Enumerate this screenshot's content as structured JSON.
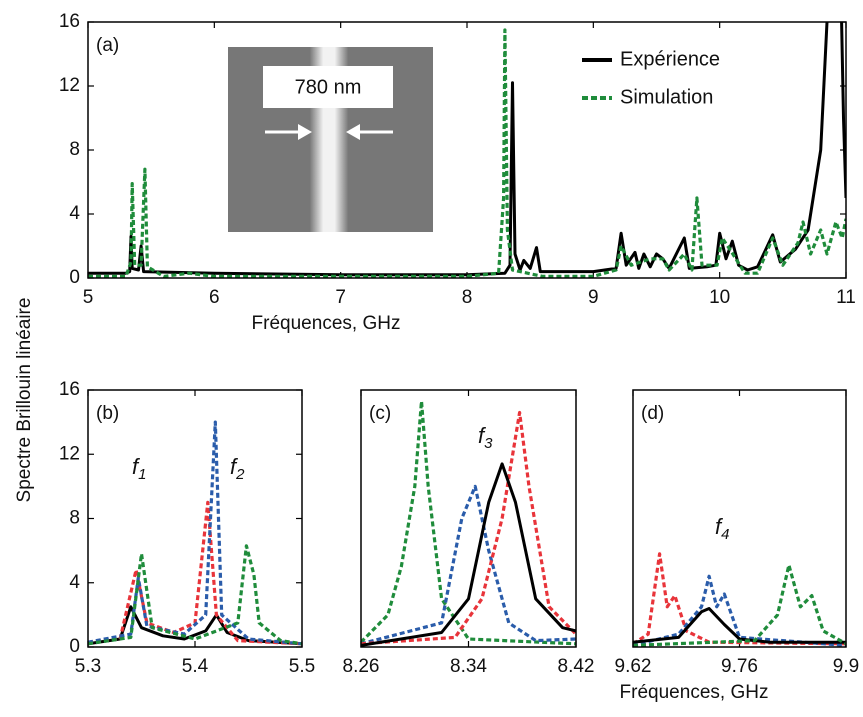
{
  "chart_data": [
    {
      "type": "line",
      "panel_label": "(a)",
      "xlabel": "Fréquences, GHz",
      "ylabel": "Spectre Brillouin linéaire",
      "xlim": [
        5,
        11
      ],
      "xticks": [
        5,
        6,
        7,
        8,
        9,
        10,
        11
      ],
      "ylim": [
        0,
        16
      ],
      "yticks": [
        0,
        4,
        8,
        12,
        16
      ],
      "inset_label": "780 nm",
      "legend": "top-right",
      "series": [
        {
          "name": "Expérience",
          "color": "#000000",
          "linestyle": "solid",
          "x": [
            5.0,
            5.3,
            5.33,
            5.34,
            5.35,
            5.4,
            5.42,
            5.44,
            6.0,
            7.0,
            8.0,
            8.3,
            8.34,
            8.36,
            8.38,
            8.42,
            8.45,
            8.5,
            8.55,
            8.58,
            9.0,
            9.18,
            9.22,
            9.26,
            9.33,
            9.36,
            9.4,
            9.45,
            9.5,
            9.55,
            9.6,
            9.72,
            9.76,
            9.9,
            9.97,
            10.0,
            10.05,
            10.1,
            10.15,
            10.22,
            10.3,
            10.42,
            10.48,
            10.6,
            10.7,
            10.8,
            10.85,
            10.88,
            10.95,
            10.98,
            11.0
          ],
          "values": [
            0.3,
            0.3,
            0.4,
            2.6,
            0.6,
            0.5,
            2.0,
            0.4,
            0.3,
            0.2,
            0.2,
            0.3,
            0.8,
            12.2,
            1.5,
            0.5,
            1.1,
            0.6,
            1.9,
            0.4,
            0.4,
            0.6,
            2.8,
            0.8,
            1.6,
            0.6,
            1.5,
            0.7,
            1.5,
            1.2,
            0.6,
            2.5,
            0.6,
            0.7,
            0.8,
            2.8,
            1.2,
            2.3,
            0.8,
            0.5,
            0.7,
            2.7,
            1.0,
            1.8,
            3.0,
            8,
            16,
            22,
            22,
            10,
            5
          ]
        },
        {
          "name": "Simulation",
          "color": "#1f8c3b",
          "linestyle": "dashed",
          "x": [
            5.0,
            5.3,
            5.34,
            5.35,
            5.37,
            5.42,
            5.45,
            5.47,
            5.6,
            5.8,
            6.0,
            7.0,
            8.0,
            8.25,
            8.29,
            8.3,
            8.32,
            8.36,
            8.6,
            9.0,
            9.18,
            9.22,
            9.3,
            9.45,
            9.55,
            9.6,
            9.72,
            9.78,
            9.82,
            9.86,
            9.98,
            10.02,
            10.08,
            10.2,
            10.3,
            10.42,
            10.5,
            10.62,
            10.66,
            10.72,
            10.8,
            10.85,
            10.92,
            10.97,
            11.0
          ],
          "values": [
            0.1,
            0.1,
            1,
            5.9,
            0.8,
            0.8,
            6.8,
            0.7,
            0.1,
            0.3,
            0.1,
            0.1,
            0.1,
            0.3,
            5,
            15.5,
            3,
            0.5,
            0.1,
            0.1,
            0.5,
            2.0,
            0.8,
            1.2,
            1.2,
            0.5,
            1.5,
            0.5,
            5,
            0.8,
            0.8,
            2.5,
            1.8,
            0.3,
            0.3,
            2.5,
            0.8,
            2.2,
            3.5,
            1.5,
            3,
            1.5,
            3.5,
            2.5,
            3.7
          ]
        }
      ]
    },
    {
      "type": "line",
      "panel_label": "(b)",
      "xlim": [
        5.3,
        5.5
      ],
      "xticks": [
        5.3,
        5.4,
        5.5
      ],
      "ylim": [
        0,
        16
      ],
      "yticks": [
        0,
        4,
        8,
        12,
        16
      ],
      "annotations": [
        {
          "text": "f",
          "sub": "1"
        },
        {
          "text": "f",
          "sub": "2"
        }
      ],
      "series": [
        {
          "color": "#000000",
          "linestyle": "solid",
          "x": [
            5.3,
            5.33,
            5.34,
            5.35,
            5.37,
            5.39,
            5.41,
            5.42,
            5.43,
            5.45,
            5.5
          ],
          "values": [
            0.2,
            0.5,
            2.5,
            1.2,
            0.7,
            0.5,
            1,
            2.0,
            0.9,
            0.4,
            0.2
          ]
        },
        {
          "color": "#e8343a",
          "linestyle": "dashed",
          "x": [
            5.3,
            5.33,
            5.345,
            5.355,
            5.38,
            5.4,
            5.412,
            5.42,
            5.44,
            5.5
          ],
          "values": [
            0.3,
            0.5,
            4.8,
            1.5,
            0.9,
            1.5,
            9,
            2,
            0.4,
            0.2
          ]
        },
        {
          "color": "#2a5caa",
          "linestyle": "dashed",
          "x": [
            5.3,
            5.34,
            5.347,
            5.355,
            5.39,
            5.41,
            5.419,
            5.425,
            5.45,
            5.5
          ],
          "values": [
            0.3,
            0.8,
            4.3,
            1.3,
            0.8,
            2,
            14,
            2,
            0.5,
            0.2
          ]
        },
        {
          "color": "#1f8c3b",
          "linestyle": "dashed",
          "x": [
            5.3,
            5.34,
            5.35,
            5.36,
            5.4,
            5.44,
            5.448,
            5.455,
            5.46,
            5.48,
            5.5
          ],
          "values": [
            0.2,
            0.6,
            5.8,
            1.2,
            0.5,
            1.5,
            6.3,
            4.5,
            1.5,
            0.4,
            0.2
          ]
        }
      ]
    },
    {
      "type": "line",
      "panel_label": "(c)",
      "xlabel": "Fréquences, GHz",
      "xlim": [
        8.26,
        8.42
      ],
      "xticks": [
        8.26,
        8.34,
        8.42
      ],
      "ylim": [
        0,
        16
      ],
      "annotations": [
        {
          "text": "f",
          "sub": "3"
        }
      ],
      "series": [
        {
          "color": "#1f8c3b",
          "linestyle": "dashed",
          "x": [
            8.26,
            8.28,
            8.29,
            8.3,
            8.305,
            8.31,
            8.32,
            8.34,
            8.42
          ],
          "values": [
            0.3,
            2,
            5,
            10,
            15.3,
            10,
            3,
            0.5,
            0.2
          ]
        },
        {
          "color": "#2a5caa",
          "linestyle": "dashed",
          "x": [
            8.26,
            8.32,
            8.335,
            8.345,
            8.355,
            8.37,
            8.39,
            8.42
          ],
          "values": [
            0.2,
            1.5,
            8,
            10,
            6,
            1.5,
            0.4,
            0.5
          ]
        },
        {
          "color": "#e8343a",
          "linestyle": "dashed",
          "x": [
            8.26,
            8.33,
            8.35,
            8.365,
            8.378,
            8.385,
            8.4,
            8.42
          ],
          "values": [
            0.2,
            0.6,
            3,
            8,
            14.6,
            10,
            2.5,
            0.8
          ]
        },
        {
          "color": "#000000",
          "linestyle": "solid",
          "x": [
            8.26,
            8.32,
            8.34,
            8.355,
            8.365,
            8.375,
            8.39,
            8.41,
            8.42
          ],
          "values": [
            0.1,
            0.9,
            3,
            9,
            11.4,
            9,
            3,
            1.2,
            1.0
          ]
        }
      ]
    },
    {
      "type": "line",
      "panel_label": "(d)",
      "xlim": [
        9.62,
        9.9
      ],
      "xticks": [
        9.62,
        9.76,
        9.9
      ],
      "ylim": [
        0,
        16
      ],
      "annotations": [
        {
          "text": "f",
          "sub": "4"
        }
      ],
      "series": [
        {
          "color": "#e8343a",
          "linestyle": "dashed",
          "x": [
            9.62,
            9.64,
            9.655,
            9.665,
            9.675,
            9.69,
            9.72,
            9.9
          ],
          "values": [
            0.2,
            0.8,
            5.8,
            2.5,
            3.2,
            1,
            0.3,
            0.2
          ]
        },
        {
          "color": "#2a5caa",
          "linestyle": "dashed",
          "x": [
            9.62,
            9.68,
            9.71,
            9.72,
            9.73,
            9.74,
            9.76,
            9.9
          ],
          "values": [
            0.1,
            0.8,
            2.5,
            4.4,
            2.5,
            3.3,
            0.6,
            0.1
          ]
        },
        {
          "color": "#000000",
          "linestyle": "solid",
          "x": [
            9.62,
            9.68,
            9.71,
            9.72,
            9.74,
            9.76,
            9.8,
            9.9
          ],
          "values": [
            0.3,
            0.6,
            2.2,
            2.4,
            1.4,
            0.5,
            0.3,
            0.3
          ]
        },
        {
          "color": "#1f8c3b",
          "linestyle": "dashed",
          "x": [
            9.62,
            9.78,
            9.81,
            9.825,
            9.84,
            9.855,
            9.87,
            9.9
          ],
          "values": [
            0.1,
            0.4,
            2,
            5.1,
            2.5,
            3.2,
            1,
            0.2
          ]
        }
      ]
    }
  ]
}
